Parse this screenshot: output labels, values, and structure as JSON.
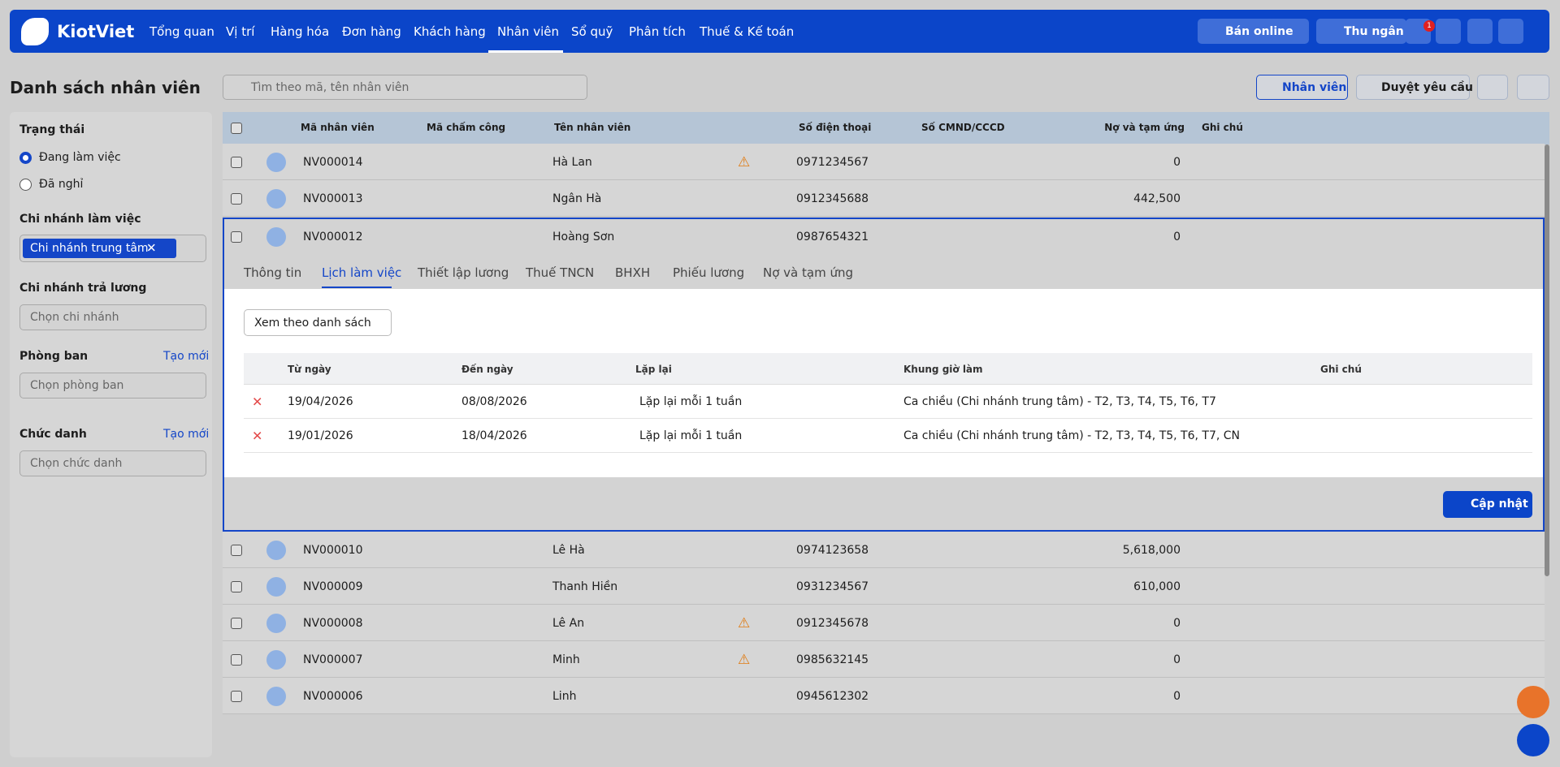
{
  "nav": {
    "logo": "KiotViet",
    "items": [
      "Tổng quan",
      "Vị trí",
      "Hàng hóa",
      "Đơn hàng",
      "Khách hàng",
      "Nhân viên",
      "Sổ quỹ",
      "Phân tích",
      "Thuế & Kế toán"
    ],
    "active": 5,
    "online": "Bán online",
    "cashier": "Thu ngân",
    "badge": "1"
  },
  "header": {
    "title": "Danh sách nhân viên",
    "search": "Tìm theo mã, tên nhân viên",
    "add": "Nhân viên",
    "approve": "Duyệt yêu cầu"
  },
  "sidebar": {
    "status_label": "Trạng thái",
    "status_options": [
      "Đang làm việc",
      "Đã nghỉ"
    ],
    "status_selected": 0,
    "branch_label": "Chi nhánh làm việc",
    "branch_tag": "Chi nhánh trung tâm",
    "pay_branch_label": "Chi nhánh trả lương",
    "pay_branch_placeholder": "Chọn chi nhánh",
    "department_label": "Phòng ban",
    "department_create": "Tạo mới",
    "department_placeholder": "Chọn phòng ban",
    "title_label": "Chức danh",
    "title_create": "Tạo mới",
    "title_placeholder": "Chọn chức danh"
  },
  "table": {
    "columns": [
      "Mã nhân viên",
      "Mã chấm công",
      "Tên nhân viên",
      "Số điện thoại",
      "Số CMND/CCCD",
      "Nợ và tạm ứng",
      "Ghi chú"
    ],
    "rows": [
      {
        "code": "NV000014",
        "name": "Hà Lan",
        "phone": "0971234567",
        "debt": "0",
        "warning": true
      },
      {
        "code": "NV000013",
        "name": "Ngân Hà",
        "phone": "0912345688",
        "debt": "442,500",
        "warning": false
      },
      {
        "code": "NV000012",
        "name": "Hoàng Sơn",
        "phone": "0987654321",
        "debt": "0",
        "warning": false
      },
      {
        "code": "NV000010",
        "name": "Lê Hà",
        "phone": "0974123658",
        "debt": "5,618,000",
        "warning": false
      },
      {
        "code": "NV000009",
        "name": "Thanh Hiền",
        "phone": "0931234567",
        "debt": "610,000",
        "warning": false
      },
      {
        "code": "NV000008",
        "name": "Lê An",
        "phone": "0912345678",
        "debt": "0",
        "warning": true
      },
      {
        "code": "NV000007",
        "name": "Minh",
        "phone": "0985632145",
        "debt": "0",
        "warning": true
      },
      {
        "code": "NV000006",
        "name": "Linh",
        "phone": "0945612302",
        "debt": "0",
        "warning": false
      }
    ],
    "expanded": 2
  },
  "detail": {
    "tabs": [
      "Thông tin",
      "Lịch làm việc",
      "Thiết lập lương",
      "Thuế TNCN",
      "BHXH",
      "Phiếu lương",
      "Nợ và tạm ứng"
    ],
    "active_tab": 1,
    "view": "Xem theo danh sách",
    "columns": [
      "Từ ngày",
      "Đến ngày",
      "Lặp lại",
      "Khung giờ làm",
      "Ghi chú"
    ],
    "rows": [
      [
        "19/04/2026",
        "08/08/2026",
        "Lặp lại mỗi 1 tuần",
        "Ca chiều (Chi nhánh trung tâm) - T2, T3, T4, T5, T6, T7"
      ],
      [
        "19/01/2026",
        "18/04/2026",
        "Lặp lại mỗi 1 tuần",
        "Ca chiều (Chi nhánh trung tâm) - T2, T3, T4, T5, T6, T7, CN"
      ]
    ],
    "update": "Cập nhật"
  }
}
